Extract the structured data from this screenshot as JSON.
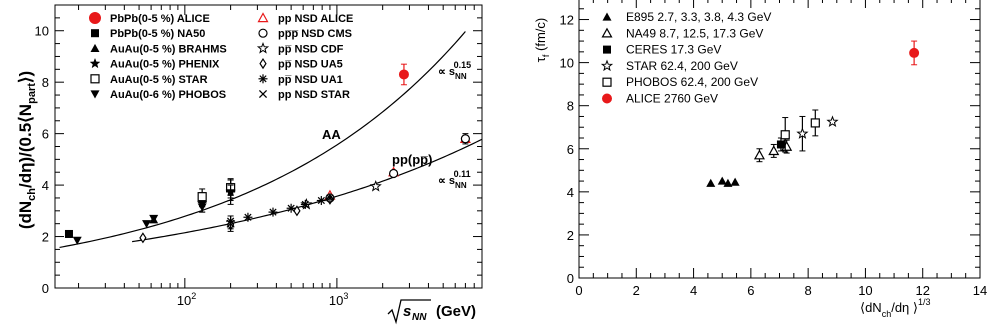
{
  "chart_data": [
    {
      "type": "scatter",
      "title": "",
      "x_scale": "log",
      "xlim": [
        14,
        9000
      ],
      "ylim": [
        0,
        11
      ],
      "xlabel_parts": {
        "base": "s",
        "sub": "NN",
        "unit": "(GeV)"
      },
      "ylabel_parts": {
        "a": "(dN",
        "sub1": "ch",
        "b": "/dη)/(0.5⟨N",
        "sub2": "part",
        "c": "⟩)"
      },
      "xticks": [
        {
          "v": 100,
          "label": "10",
          "sup": "2"
        },
        {
          "v": 1000,
          "label": "10",
          "sup": "3"
        }
      ],
      "yticks": [
        0,
        2,
        4,
        6,
        8,
        10
      ],
      "legend_left": [
        {
          "label": "PbPb(0-5 %) ALICE",
          "marker": "circle-filled",
          "color": "#e8191a"
        },
        {
          "label": "PbPb(0-5 %) NA50",
          "marker": "square-filled",
          "color": "#000000"
        },
        {
          "label": "AuAu(0-5 %) BRAHMS",
          "marker": "triangle-up-filled",
          "color": "#000000"
        },
        {
          "label": "AuAu(0-5 %) PHENIX",
          "marker": "star-filled",
          "color": "#000000"
        },
        {
          "label": "AuAu(0-5 %) STAR",
          "marker": "square-open",
          "color": "#000000"
        },
        {
          "label": "AuAu(0-6 %) PHOBOS",
          "marker": "triangle-down-filled",
          "color": "#000000"
        }
      ],
      "legend_right": [
        {
          "label": "pp NSD  ALICE",
          "marker": "triangle-up-open",
          "color": "#e8191a"
        },
        {
          "label": "pp̅p̅ NSD CMS",
          "marker": "circle-open",
          "color": "#000000"
        },
        {
          "label": "pp̅ NSD CDF",
          "marker": "star-open",
          "color": "#000000"
        },
        {
          "label": "pp̅ NSD UA5",
          "marker": "diamond-open",
          "color": "#000000"
        },
        {
          "label": "pp̅ NSD UA1",
          "marker": "asterisk",
          "color": "#000000"
        },
        {
          "label": "pp NSD STAR",
          "marker": "cross",
          "color": "#000000"
        }
      ],
      "annotations": {
        "aa": "AA",
        "pp": "pp(pp̅)",
        "aa_power": {
          "prefix": "∝ s",
          "sub": "NN",
          "sup": "0.15"
        },
        "pp_power": {
          "prefix": "∝ s",
          "sub": "NN",
          "sup": "0.11"
        }
      },
      "fits": [
        {
          "name": "AA",
          "a": 0.7,
          "b": 0.15,
          "xmin": 15,
          "xmax": 7000
        },
        {
          "name": "pp",
          "a": 0.78,
          "b": 0.11,
          "xmin": 45,
          "xmax": 9000
        }
      ],
      "series": [
        {
          "marker": "circle-filled",
          "color": "#e8191a",
          "points": [
            [
              2760,
              8.3,
              0.4
            ]
          ]
        },
        {
          "marker": "square-filled",
          "color": "#000000",
          "points": [
            [
              17.3,
              2.1,
              0
            ]
          ]
        },
        {
          "marker": "triangle-up-filled",
          "color": "#000000",
          "points": [
            [
              62.4,
              2.65,
              0
            ],
            [
              130,
              3.45,
              0.25
            ],
            [
              200,
              3.85,
              0.35
            ]
          ]
        },
        {
          "marker": "star-filled",
          "color": "#000000",
          "points": [
            [
              130,
              3.3,
              0.35
            ],
            [
              200,
              3.75,
              0.5
            ]
          ]
        },
        {
          "marker": "square-open",
          "color": "#000000",
          "points": [
            [
              130,
              3.55,
              0.3
            ],
            [
              200,
              3.9,
              0.3
            ]
          ]
        },
        {
          "marker": "triangle-down-filled",
          "color": "#000000",
          "points": [
            [
              19.6,
              1.85,
              0
            ],
            [
              56,
              2.5,
              0
            ],
            [
              62.4,
              2.7,
              0
            ],
            [
              130,
              3.15,
              0.2
            ],
            [
              200,
              3.7,
              0.3
            ]
          ]
        },
        {
          "marker": "triangle-up-open",
          "color": "#e8191a",
          "points": [
            [
              900,
              3.6,
              0
            ],
            [
              2360,
              4.5,
              0
            ],
            [
              7000,
              5.8,
              0
            ]
          ]
        },
        {
          "marker": "circle-open",
          "color": "#000000",
          "points": [
            [
              900,
              3.5,
              0
            ],
            [
              2360,
              4.45,
              0
            ],
            [
              7000,
              5.8,
              0.2
            ]
          ]
        },
        {
          "marker": "star-open",
          "color": "#000000",
          "points": [
            [
              630,
              3.25,
              0
            ],
            [
              1800,
              3.95,
              0
            ]
          ]
        },
        {
          "marker": "diamond-open",
          "color": "#000000",
          "points": [
            [
              53,
              1.95,
              0
            ],
            [
              200,
              2.45,
              0.15
            ],
            [
              546,
              3.0,
              0
            ],
            [
              900,
              3.45,
              0
            ]
          ]
        },
        {
          "marker": "asterisk",
          "color": "#000000",
          "points": [
            [
              200,
              2.6,
              0
            ],
            [
              260,
              2.75,
              0
            ],
            [
              380,
              2.95,
              0
            ],
            [
              500,
              3.1,
              0
            ],
            [
              620,
              3.25,
              0
            ],
            [
              790,
              3.4,
              0
            ],
            [
              900,
              3.5,
              0
            ]
          ]
        },
        {
          "marker": "cross",
          "color": "#000000",
          "points": [
            [
              200,
              2.5,
              0.3
            ]
          ]
        }
      ]
    },
    {
      "type": "scatter",
      "title": "",
      "xlim": [
        0,
        14
      ],
      "ylim": [
        0,
        13
      ],
      "xlabel_parts": {
        "a": "⟨dN",
        "sub": "ch",
        "b": "/dη ⟩",
        "sup": "1/3"
      },
      "ylabel_parts": {
        "a": "τ",
        "sub": "f",
        "b": " (fm/c)"
      },
      "xticks": [
        0,
        2,
        4,
        6,
        8,
        10,
        12,
        14
      ],
      "yticks": [
        0,
        2,
        4,
        6,
        8,
        10,
        12
      ],
      "legend": [
        {
          "label": "E895 2.7, 3.3, 3.8, 4.3 GeV",
          "marker": "triangle-up-filled",
          "color": "#000000"
        },
        {
          "label": "NA49 8.7, 12.5, 17.3 GeV",
          "marker": "triangle-up-open",
          "color": "#000000"
        },
        {
          "label": "CERES 17.3 GeV",
          "marker": "square-filled",
          "color": "#000000"
        },
        {
          "label": "STAR 62.4, 200 GeV",
          "marker": "star-open",
          "color": "#000000"
        },
        {
          "label": "PHOBOS 62.4, 200 GeV",
          "marker": "square-open",
          "color": "#000000"
        },
        {
          "label": "ALICE 2760 GeV",
          "marker": "circle-filled",
          "color": "#e8191a"
        }
      ],
      "series": [
        {
          "name": "E895 2.7, 3.3, 3.8, 4.3 GeV",
          "marker": "triangle-up-filled",
          "color": "#000000",
          "points": [
            [
              4.6,
              4.4,
              0
            ],
            [
              5.0,
              4.5,
              0
            ],
            [
              5.2,
              4.4,
              0
            ],
            [
              5.45,
              4.45,
              0
            ]
          ]
        },
        {
          "name": "NA49 8.7, 12.5, 17.3 GeV",
          "marker": "triangle-up-open",
          "color": "#000000",
          "points": [
            [
              6.3,
              5.7,
              0.3
            ],
            [
              6.8,
              5.9,
              0.3
            ],
            [
              7.25,
              6.1,
              0.3
            ]
          ]
        },
        {
          "name": "CERES 17.3 GeV",
          "marker": "square-filled",
          "color": "#000000",
          "points": [
            [
              7.05,
              6.2,
              0.3
            ]
          ]
        },
        {
          "name": "STAR 62.4, 200 GeV",
          "marker": "star-open",
          "color": "#000000",
          "points": [
            [
              7.8,
              6.7,
              0.8
            ],
            [
              8.85,
              7.25,
              0
            ]
          ]
        },
        {
          "name": "PHOBOS 62.4, 200 GeV",
          "marker": "square-open",
          "color": "#000000",
          "points": [
            [
              7.2,
              6.65,
              0.8
            ],
            [
              8.25,
              7.2,
              0.6
            ]
          ]
        },
        {
          "name": "ALICE 2760 GeV",
          "marker": "circle-filled",
          "color": "#e8191a",
          "points": [
            [
              11.7,
              10.45,
              0.55
            ]
          ]
        }
      ]
    }
  ]
}
